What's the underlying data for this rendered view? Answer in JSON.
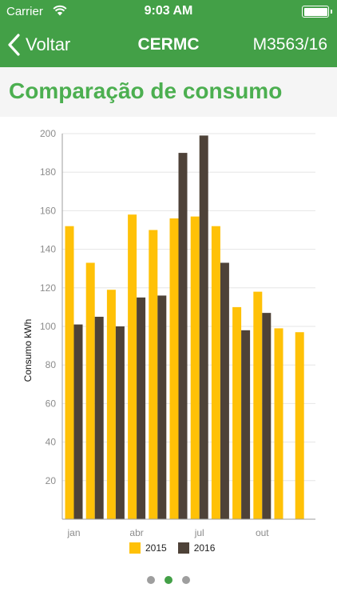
{
  "status_bar": {
    "carrier": "Carrier",
    "time": "9:03 AM"
  },
  "nav": {
    "back_label": "Voltar",
    "title": "CERMC",
    "right_label": "M3563/16"
  },
  "section": {
    "title": "Comparação de consumo"
  },
  "colors": {
    "brand_green": "#43a047",
    "title_green": "#4caf50",
    "series_2015": "#ffc107",
    "series_2016": "#4e4238"
  },
  "chart_data": {
    "type": "bar",
    "ylabel": "Consumo kWh",
    "xlabel": "",
    "ylim": [
      0,
      200
    ],
    "yticks": [
      20,
      40,
      60,
      80,
      100,
      120,
      140,
      160,
      180,
      200
    ],
    "xtick_labels": [
      {
        "label": "jan",
        "month": 1
      },
      {
        "label": "abr",
        "month": 4
      },
      {
        "label": "jul",
        "month": 7
      },
      {
        "label": "out",
        "month": 10
      }
    ],
    "months": [
      1,
      2,
      3,
      4,
      5,
      6,
      7,
      8,
      9,
      10,
      11,
      12
    ],
    "grid": true,
    "legend": "bottom",
    "series": [
      {
        "name": "2015",
        "values": [
          152,
          133,
          119,
          158,
          150,
          156,
          157,
          152,
          110,
          118,
          99,
          97
        ]
      },
      {
        "name": "2016",
        "values": [
          101,
          105,
          100,
          115,
          116,
          190,
          199,
          133,
          98,
          107,
          null,
          null
        ]
      }
    ]
  },
  "pager": {
    "count": 3,
    "active": 1
  }
}
